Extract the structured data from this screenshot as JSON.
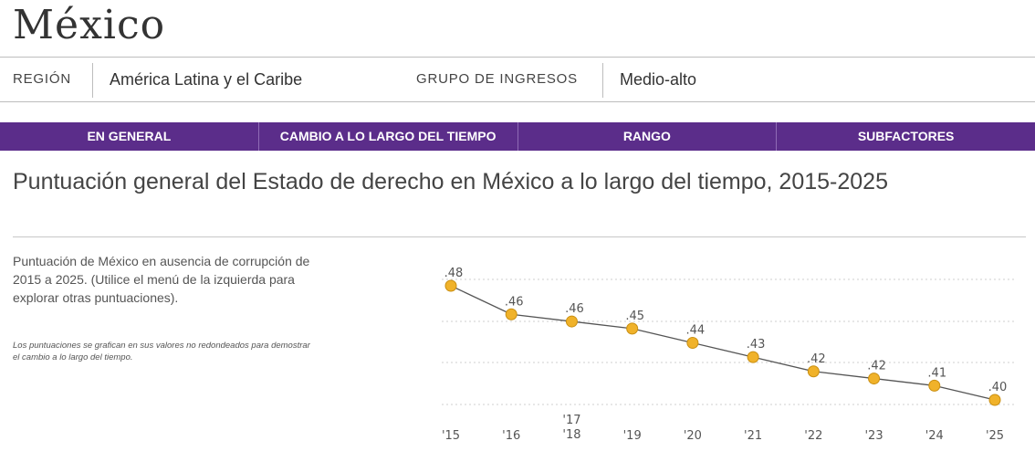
{
  "country": "México",
  "info": {
    "region_label": "REGIÓN",
    "region_value": "América Latina y el Caribe",
    "income_label": "GRUPO DE INGRESOS",
    "income_value": "Medio-alto"
  },
  "tabs": [
    {
      "label": "EN GENERAL"
    },
    {
      "label": "CAMBIO A LO LARGO DEL TIEMPO"
    },
    {
      "label": "RANGO"
    },
    {
      "label": "SUBFACTORES"
    }
  ],
  "chart_title": "Puntuación general del Estado de derecho en México a lo largo del tiempo, 2015-2025",
  "description": "Puntuación de México en ausencia de corrupción de 2015 a 2025. (Utilice el menú de la izquierda para explorar otras puntuaciones).",
  "note": "Los puntuaciones se grafican en sus valores no redondeados para demostrar el cambio a lo largo del tiempo.",
  "colors": {
    "tab_bar": "#5b2d8a",
    "marker_fill": "#f0b22a",
    "marker_stroke": "#c98f12",
    "line": "#555555"
  },
  "chart_data": {
    "type": "line",
    "title": "Puntuación general del Estado de derecho en México a lo largo del tiempo, 2015-2025",
    "xlabel": "",
    "ylabel": "",
    "grid": true,
    "x": [
      "'15",
      "'16",
      "'17\n'18",
      "'19",
      "'20",
      "'21",
      "'22",
      "'23",
      "'24",
      "'25"
    ],
    "values": [
      0.48,
      0.46,
      0.455,
      0.45,
      0.44,
      0.43,
      0.42,
      0.415,
      0.41,
      0.4
    ],
    "labels": [
      ".48",
      ".46",
      ".46",
      ".45",
      ".44",
      ".43",
      ".42",
      ".42",
      ".41",
      ".40"
    ],
    "ylim": [
      0.4,
      0.48
    ]
  }
}
